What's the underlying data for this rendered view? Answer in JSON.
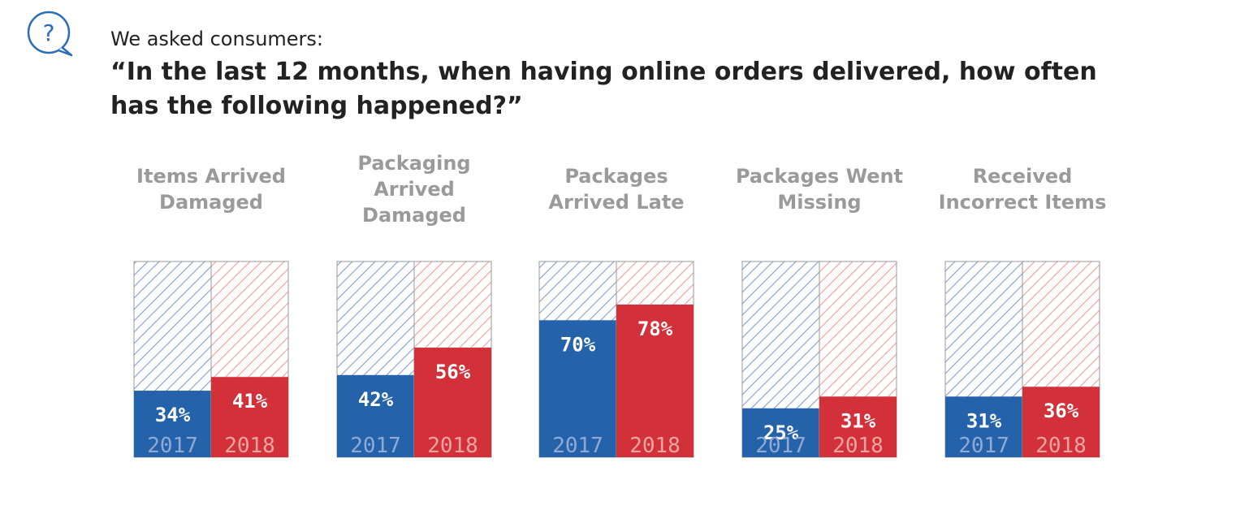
{
  "intro": "We asked consumers:",
  "question": "“In the last 12 months, when having online orders delivered, how often has the following happened?”",
  "icon": "question-bubble-icon",
  "colors": {
    "blue": "#2463aa",
    "red": "#d3313a",
    "blue_hatch": "#8ea6cf",
    "red_hatch": "#efa6a1",
    "year_blue": "#8faad6",
    "year_red": "#f0a4a2",
    "title_gray": "#9a9a9a",
    "icon_blue": "#2a6db5"
  },
  "chart_data": {
    "type": "bar",
    "ylim": [
      0,
      100
    ],
    "series": [
      {
        "name": "2017",
        "values": [
          34,
          42,
          70,
          25,
          31
        ]
      },
      {
        "name": "2018",
        "values": [
          41,
          56,
          78,
          31,
          36
        ]
      }
    ],
    "panels": [
      {
        "title": [
          "Items Arrived",
          "Damaged"
        ],
        "labels": [
          "34%",
          "41%"
        ]
      },
      {
        "title": [
          "Packaging",
          "Arrived",
          "Damaged"
        ],
        "labels": [
          "42%",
          "56%"
        ]
      },
      {
        "title": [
          "Packages",
          "Arrived Late"
        ],
        "labels": [
          "70%",
          "78%"
        ]
      },
      {
        "title": [
          "Packages Went",
          "Missing"
        ],
        "labels": [
          "25%",
          "31%"
        ]
      },
      {
        "title": [
          "Received",
          "Incorrect Items"
        ],
        "labels": [
          "31%",
          "36%"
        ]
      }
    ]
  }
}
